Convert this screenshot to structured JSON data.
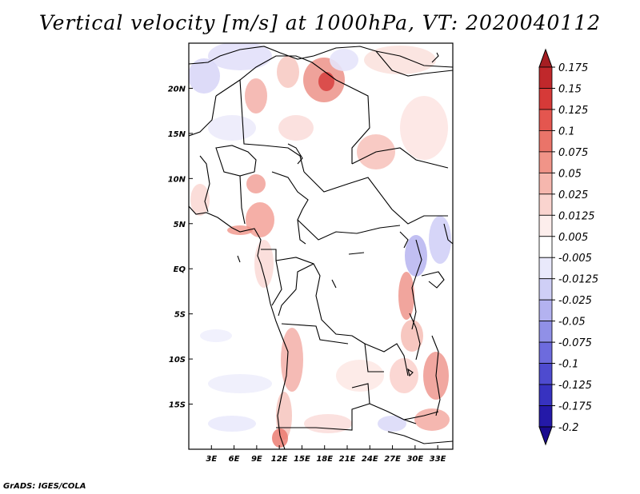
{
  "title": "Vertical velocity [m/s] at 1000hPa, VT: 2020040112",
  "credit": "GrADS: IGES/COLA",
  "map": {
    "lat_labels": [
      "20N",
      "15N",
      "10N",
      "5N",
      "EQ",
      "5S",
      "10S",
      "15S"
    ],
    "lat_values": [
      20,
      15,
      10,
      5,
      0,
      -5,
      -10,
      -15
    ],
    "lon_labels": [
      "3E",
      "6E",
      "9E",
      "12E",
      "15E",
      "18E",
      "21E",
      "24E",
      "27E",
      "30E",
      "33E"
    ],
    "lon_values": [
      3,
      6,
      9,
      12,
      15,
      18,
      21,
      24,
      27,
      30,
      33
    ],
    "lon_range": [
      0,
      35
    ],
    "lat_range": [
      -20,
      25
    ]
  },
  "colorbar": {
    "labels": [
      "0.175",
      "0.15",
      "0.125",
      "0.1",
      "0.075",
      "0.05",
      "0.025",
      "0.0125",
      "0.005",
      "-0.005",
      "-0.0125",
      "-0.025",
      "-0.05",
      "-0.075",
      "-0.1",
      "-0.125",
      "-0.175",
      "-0.2"
    ],
    "colors": [
      "#a51e22",
      "#c0282b",
      "#d63a38",
      "#e4564f",
      "#ea7469",
      "#f09488",
      "#f6b7ae",
      "#fad4cf",
      "#fdeeec",
      "#ffffff",
      "#e9e9fb",
      "#cfcff6",
      "#b3b2f0",
      "#9090e7",
      "#6d6bdd",
      "#4e4bcf",
      "#3732c0",
      "#2419a8",
      "#1a0b8e"
    ]
  },
  "icons": {
    "colorbar_top": "triangle-up-icon",
    "colorbar_bottom": "triangle-down-icon"
  }
}
